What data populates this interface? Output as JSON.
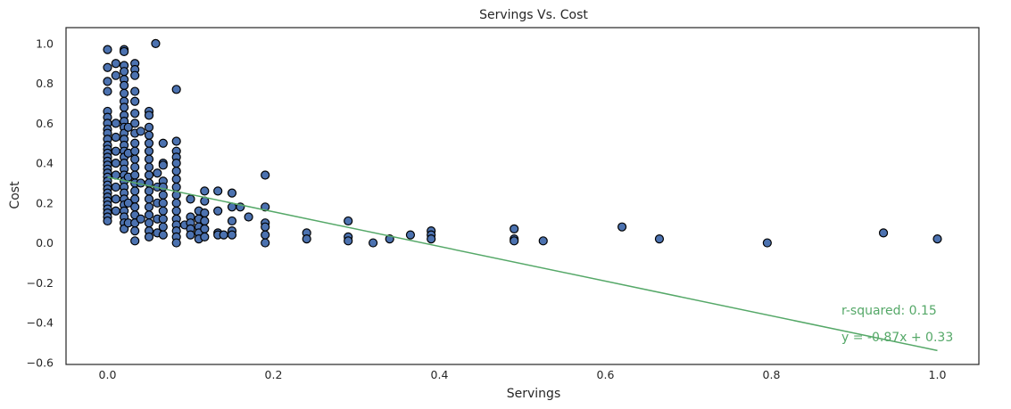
{
  "chart_data": {
    "type": "scatter",
    "title": "Servings Vs. Cost",
    "xlabel": "Servings",
    "ylabel": "Cost",
    "xlim": [
      -0.05,
      1.05
    ],
    "ylim": [
      -0.61,
      1.08
    ],
    "grid": false,
    "x_ticks": [
      0.0,
      0.2,
      0.4,
      0.6,
      0.8,
      1.0
    ],
    "x_tick_labels": [
      "0.0",
      "0.2",
      "0.4",
      "0.6",
      "0.8",
      "1.0"
    ],
    "y_ticks": [
      -0.6,
      -0.4,
      -0.2,
      0.0,
      0.2,
      0.4,
      0.6,
      0.8,
      1.0
    ],
    "y_tick_labels": [
      "−0.6",
      "−0.4",
      "−0.2",
      "0.0",
      "0.2",
      "0.4",
      "0.6",
      "0.8",
      "1.0"
    ],
    "colors": {
      "points": "#4c72b0",
      "point_edge": "#000000",
      "fit_line": "#55a868",
      "text": "#262626"
    },
    "regression": {
      "slope": -0.87,
      "intercept": 0.33,
      "x_range": [
        0.0,
        1.0
      ]
    },
    "annotations": [
      "r-squared: 0.15",
      "y = -0.87x + 0.33"
    ],
    "points": [
      [
        0.0,
        0.97
      ],
      [
        0.0,
        0.88
      ],
      [
        0.0,
        0.81
      ],
      [
        0.0,
        0.76
      ],
      [
        0.0,
        0.66
      ],
      [
        0.0,
        0.63
      ],
      [
        0.0,
        0.6
      ],
      [
        0.0,
        0.57
      ],
      [
        0.0,
        0.55
      ],
      [
        0.0,
        0.52
      ],
      [
        0.0,
        0.49
      ],
      [
        0.0,
        0.47
      ],
      [
        0.0,
        0.45
      ],
      [
        0.0,
        0.43
      ],
      [
        0.0,
        0.41
      ],
      [
        0.0,
        0.39
      ],
      [
        0.0,
        0.37
      ],
      [
        0.0,
        0.35
      ],
      [
        0.0,
        0.33
      ],
      [
        0.0,
        0.31
      ],
      [
        0.0,
        0.29
      ],
      [
        0.0,
        0.27
      ],
      [
        0.0,
        0.25
      ],
      [
        0.0,
        0.23
      ],
      [
        0.0,
        0.21
      ],
      [
        0.0,
        0.19
      ],
      [
        0.0,
        0.17
      ],
      [
        0.0,
        0.15
      ],
      [
        0.0,
        0.13
      ],
      [
        0.0,
        0.11
      ],
      [
        0.01,
        0.9
      ],
      [
        0.01,
        0.84
      ],
      [
        0.01,
        0.6
      ],
      [
        0.01,
        0.53
      ],
      [
        0.01,
        0.46
      ],
      [
        0.01,
        0.4
      ],
      [
        0.01,
        0.34
      ],
      [
        0.01,
        0.28
      ],
      [
        0.01,
        0.22
      ],
      [
        0.01,
        0.16
      ],
      [
        0.02,
        0.97
      ],
      [
        0.02,
        0.96
      ],
      [
        0.02,
        0.89
      ],
      [
        0.02,
        0.86
      ],
      [
        0.02,
        0.82
      ],
      [
        0.02,
        0.79
      ],
      [
        0.02,
        0.75
      ],
      [
        0.02,
        0.71
      ],
      [
        0.02,
        0.68
      ],
      [
        0.02,
        0.64
      ],
      [
        0.02,
        0.61
      ],
      [
        0.02,
        0.58
      ],
      [
        0.02,
        0.55
      ],
      [
        0.02,
        0.52
      ],
      [
        0.02,
        0.49
      ],
      [
        0.02,
        0.46
      ],
      [
        0.02,
        0.43
      ],
      [
        0.02,
        0.4
      ],
      [
        0.02,
        0.37
      ],
      [
        0.02,
        0.34
      ],
      [
        0.02,
        0.31
      ],
      [
        0.02,
        0.28
      ],
      [
        0.02,
        0.25
      ],
      [
        0.02,
        0.22
      ],
      [
        0.02,
        0.19
      ],
      [
        0.02,
        0.16
      ],
      [
        0.02,
        0.13
      ],
      [
        0.02,
        0.1
      ],
      [
        0.02,
        0.07
      ],
      [
        0.025,
        0.58
      ],
      [
        0.025,
        0.45
      ],
      [
        0.025,
        0.33
      ],
      [
        0.025,
        0.2
      ],
      [
        0.025,
        0.1
      ],
      [
        0.033,
        0.9
      ],
      [
        0.033,
        0.87
      ],
      [
        0.033,
        0.84
      ],
      [
        0.033,
        0.76
      ],
      [
        0.033,
        0.71
      ],
      [
        0.033,
        0.65
      ],
      [
        0.033,
        0.6
      ],
      [
        0.033,
        0.55
      ],
      [
        0.033,
        0.5
      ],
      [
        0.033,
        0.46
      ],
      [
        0.033,
        0.42
      ],
      [
        0.033,
        0.38
      ],
      [
        0.033,
        0.34
      ],
      [
        0.033,
        0.3
      ],
      [
        0.033,
        0.26
      ],
      [
        0.033,
        0.22
      ],
      [
        0.033,
        0.18
      ],
      [
        0.033,
        0.14
      ],
      [
        0.033,
        0.1
      ],
      [
        0.033,
        0.06
      ],
      [
        0.033,
        0.01
      ],
      [
        0.04,
        0.56
      ],
      [
        0.04,
        0.3
      ],
      [
        0.04,
        0.12
      ],
      [
        0.05,
        0.66
      ],
      [
        0.05,
        0.64
      ],
      [
        0.05,
        0.58
      ],
      [
        0.05,
        0.54
      ],
      [
        0.05,
        0.5
      ],
      [
        0.05,
        0.46
      ],
      [
        0.05,
        0.42
      ],
      [
        0.05,
        0.38
      ],
      [
        0.05,
        0.34
      ],
      [
        0.05,
        0.3
      ],
      [
        0.05,
        0.26
      ],
      [
        0.05,
        0.22
      ],
      [
        0.05,
        0.18
      ],
      [
        0.05,
        0.14
      ],
      [
        0.05,
        0.1
      ],
      [
        0.05,
        0.06
      ],
      [
        0.05,
        0.03
      ],
      [
        0.058,
        1.0
      ],
      [
        0.06,
        0.35
      ],
      [
        0.06,
        0.28
      ],
      [
        0.06,
        0.2
      ],
      [
        0.06,
        0.12
      ],
      [
        0.06,
        0.05
      ],
      [
        0.067,
        0.5
      ],
      [
        0.067,
        0.4
      ],
      [
        0.067,
        0.39
      ],
      [
        0.067,
        0.31
      ],
      [
        0.067,
        0.28
      ],
      [
        0.067,
        0.24
      ],
      [
        0.067,
        0.2
      ],
      [
        0.067,
        0.16
      ],
      [
        0.067,
        0.12
      ],
      [
        0.067,
        0.08
      ],
      [
        0.067,
        0.04
      ],
      [
        0.083,
        0.77
      ],
      [
        0.083,
        0.51
      ],
      [
        0.083,
        0.46
      ],
      [
        0.083,
        0.43
      ],
      [
        0.083,
        0.4
      ],
      [
        0.083,
        0.36
      ],
      [
        0.083,
        0.32
      ],
      [
        0.083,
        0.28
      ],
      [
        0.083,
        0.24
      ],
      [
        0.083,
        0.2
      ],
      [
        0.083,
        0.16
      ],
      [
        0.083,
        0.12
      ],
      [
        0.083,
        0.09
      ],
      [
        0.083,
        0.06
      ],
      [
        0.083,
        0.03
      ],
      [
        0.083,
        0.0
      ],
      [
        0.093,
        0.09
      ],
      [
        0.1,
        0.22
      ],
      [
        0.1,
        0.13
      ],
      [
        0.1,
        0.1
      ],
      [
        0.1,
        0.07
      ],
      [
        0.1,
        0.04
      ],
      [
        0.11,
        0.16
      ],
      [
        0.11,
        0.12
      ],
      [
        0.11,
        0.08
      ],
      [
        0.11,
        0.05
      ],
      [
        0.11,
        0.02
      ],
      [
        0.117,
        0.26
      ],
      [
        0.117,
        0.21
      ],
      [
        0.117,
        0.15
      ],
      [
        0.117,
        0.11
      ],
      [
        0.117,
        0.07
      ],
      [
        0.117,
        0.03
      ],
      [
        0.133,
        0.26
      ],
      [
        0.133,
        0.16
      ],
      [
        0.133,
        0.05
      ],
      [
        0.133,
        0.04
      ],
      [
        0.14,
        0.04
      ],
      [
        0.15,
        0.25
      ],
      [
        0.15,
        0.18
      ],
      [
        0.15,
        0.11
      ],
      [
        0.15,
        0.06
      ],
      [
        0.15,
        0.04
      ],
      [
        0.16,
        0.18
      ],
      [
        0.17,
        0.13
      ],
      [
        0.19,
        0.34
      ],
      [
        0.19,
        0.18
      ],
      [
        0.19,
        0.1
      ],
      [
        0.19,
        0.08
      ],
      [
        0.19,
        0.04
      ],
      [
        0.19,
        0.0
      ],
      [
        0.24,
        0.05
      ],
      [
        0.24,
        0.02
      ],
      [
        0.29,
        0.11
      ],
      [
        0.29,
        0.03
      ],
      [
        0.29,
        0.01
      ],
      [
        0.32,
        0.0
      ],
      [
        0.34,
        0.02
      ],
      [
        0.365,
        0.04
      ],
      [
        0.39,
        0.06
      ],
      [
        0.39,
        0.04
      ],
      [
        0.39,
        0.02
      ],
      [
        0.49,
        0.07
      ],
      [
        0.49,
        0.02
      ],
      [
        0.49,
        0.01
      ],
      [
        0.525,
        0.01
      ],
      [
        0.62,
        0.08
      ],
      [
        0.665,
        0.02
      ],
      [
        0.795,
        0.0
      ],
      [
        0.935,
        0.05
      ],
      [
        1.0,
        0.02
      ]
    ]
  }
}
